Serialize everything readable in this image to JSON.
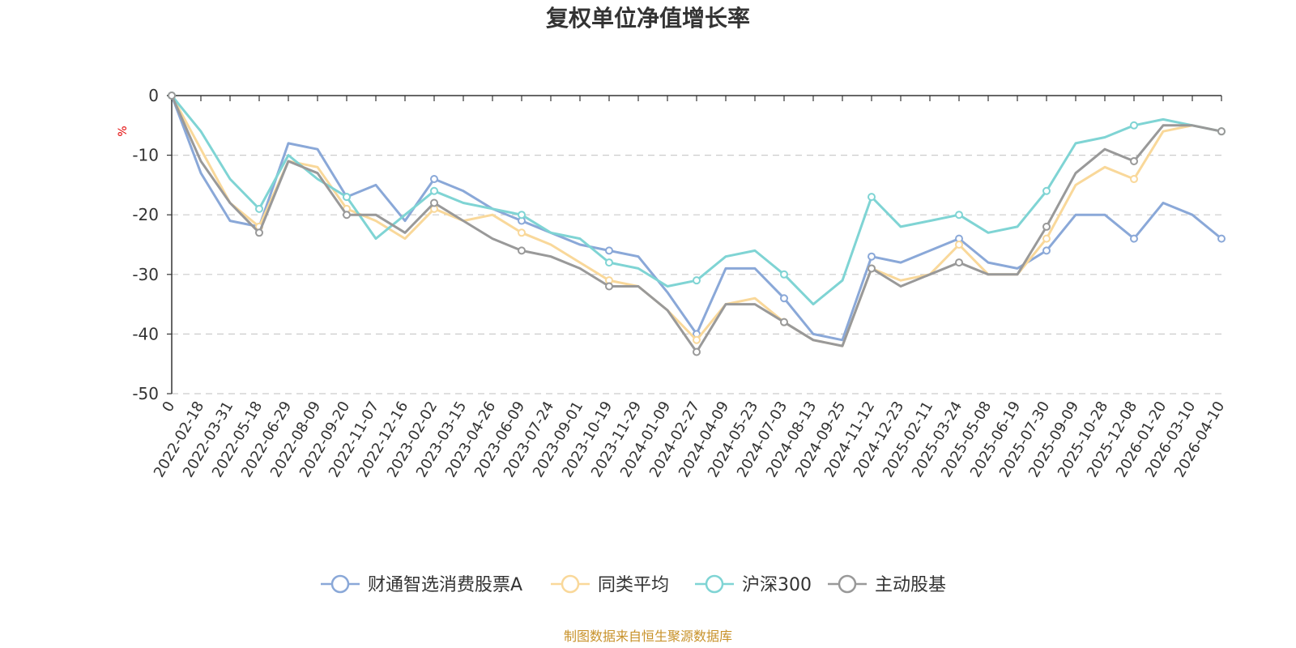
{
  "chart_data": {
    "type": "line",
    "title": "复权单位净值增长率",
    "ylabel": "%",
    "xlabel": "",
    "ylim": [
      -50,
      0
    ],
    "yticks": [
      0,
      -10,
      -20,
      -30,
      -40,
      -50
    ],
    "grid": "horizontal dashed",
    "legend_position": "bottom",
    "categories": [
      "0",
      "2022-02-18",
      "2022-03-31",
      "2022-05-18",
      "2022-06-29",
      "2022-08-09",
      "2022-09-20",
      "2022-11-07",
      "2022-12-16",
      "2023-02-02",
      "2023-03-15",
      "2023-04-26",
      "2023-06-09",
      "2023-07-24",
      "2023-09-01",
      "2023-10-19",
      "2023-11-29",
      "2024-01-09",
      "2024-02-27",
      "2024-04-09",
      "2024-05-23",
      "2024-07-03",
      "2024-08-13",
      "2024-09-25",
      "2024-11-12",
      "2024-12-23",
      "2025-02-11",
      "2025-03-24",
      "2025-05-08",
      "2025-06-19",
      "2025-07-30",
      "2025-09-09",
      "2025-10-28",
      "2025-12-08",
      "2026-01-20",
      "2026-03-10",
      "2026-04-10"
    ],
    "series": [
      {
        "name": "财通智选消费股票A",
        "color": "#8aa8d8",
        "values": [
          0,
          -13,
          -21,
          -22,
          -8,
          -9,
          -17,
          -15,
          -21,
          -14,
          -16,
          -19,
          -21,
          -23,
          -25,
          -26,
          -27,
          -33,
          -40,
          -29,
          -29,
          -34,
          -40,
          -41,
          -27,
          -28,
          -26,
          -24,
          -28,
          -29,
          -26,
          -20,
          -20,
          -24,
          -18,
          -20,
          -24
        ]
      },
      {
        "name": "同类平均",
        "color": "#f9d89a",
        "values": [
          0,
          -9,
          -18,
          -22,
          -11,
          -12,
          -19,
          -21,
          -24,
          -19,
          -21,
          -20,
          -23,
          -25,
          -28,
          -31,
          -32,
          -36,
          -41,
          -35,
          -34,
          -38,
          -41,
          -42,
          -29,
          -31,
          -30,
          -25,
          -30,
          -30,
          -24,
          -15,
          -12,
          -14,
          -6,
          -5,
          -6
        ]
      },
      {
        "name": "沪深300",
        "color": "#7fd4d4",
        "values": [
          0,
          -6,
          -14,
          -19,
          -10,
          -14,
          -17,
          -24,
          -20,
          -16,
          -18,
          -19,
          -20,
          -23,
          -24,
          -28,
          -29,
          -32,
          -31,
          -27,
          -26,
          -30,
          -35,
          -31,
          -17,
          -22,
          -21,
          -20,
          -23,
          -22,
          -16,
          -8,
          -7,
          -5,
          -4,
          -5,
          -6
        ]
      },
      {
        "name": "主动股基",
        "color": "#999999",
        "values": [
          0,
          -11,
          -18,
          -23,
          -11,
          -13,
          -20,
          -20,
          -23,
          -18,
          -21,
          -24,
          -26,
          -27,
          -29,
          -32,
          -32,
          -36,
          -43,
          -35,
          -35,
          -38,
          -41,
          -42,
          -29,
          -32,
          -30,
          -28,
          -30,
          -30,
          -22,
          -13,
          -9,
          -11,
          -5,
          -5,
          -6
        ]
      }
    ]
  },
  "footer": {
    "source": "制图数据来自恒生聚源数据库"
  }
}
